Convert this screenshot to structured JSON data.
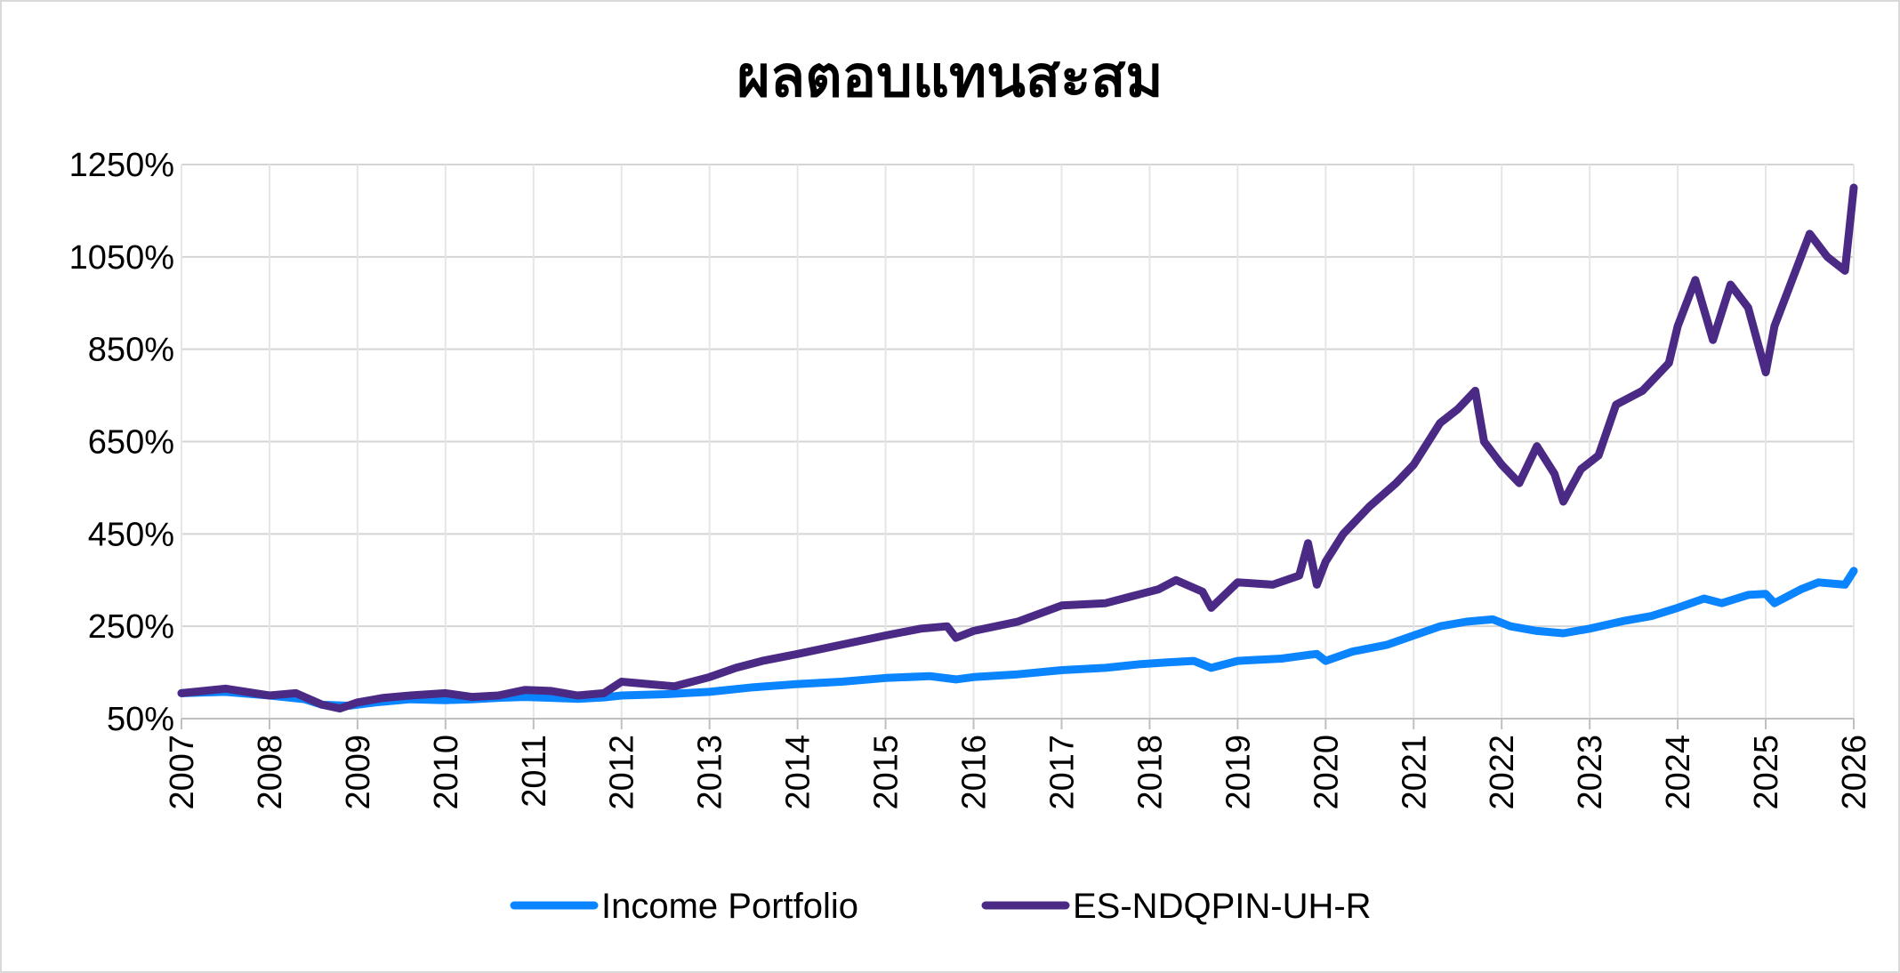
{
  "chart_data": {
    "type": "line",
    "title": "ผลตอบแทนสะสม",
    "xlabel": "",
    "ylabel": "",
    "xlim": [
      2007,
      2026
    ],
    "ylim": [
      50,
      1250
    ],
    "y_ticks": [
      50,
      250,
      450,
      650,
      850,
      1050,
      1250
    ],
    "y_tick_labels": [
      "50%",
      "250%",
      "450%",
      "650%",
      "850%",
      "1050%",
      "1250%"
    ],
    "x_ticks": [
      "2007",
      "2008",
      "2009",
      "2010",
      "2011",
      "2012",
      "2013",
      "2014",
      "2015",
      "2016",
      "2017",
      "2018",
      "2019",
      "2020",
      "2021",
      "2022",
      "2023",
      "2024",
      "2025",
      "2026"
    ],
    "grid": true,
    "legend_position": "bottom",
    "series": [
      {
        "name": "Income Portfolio",
        "color": "#0a84ff",
        "x": [
          2007.0,
          2007.5,
          2008.0,
          2008.4,
          2008.6,
          2008.9,
          2009.2,
          2009.6,
          2010.0,
          2010.3,
          2010.6,
          2010.9,
          2011.2,
          2011.5,
          2011.8,
          2012.0,
          2012.5,
          2013.0,
          2013.5,
          2014.0,
          2014.5,
          2015.0,
          2015.5,
          2015.8,
          2016.0,
          2016.5,
          2017.0,
          2017.5,
          2017.9,
          2018.2,
          2018.5,
          2018.7,
          2019.0,
          2019.5,
          2019.8,
          2019.9,
          2020.0,
          2020.3,
          2020.7,
          2021.0,
          2021.3,
          2021.6,
          2021.9,
          2022.1,
          2022.4,
          2022.7,
          2023.0,
          2023.4,
          2023.7,
          2024.0,
          2024.3,
          2024.5,
          2024.8,
          2025.0,
          2025.1,
          2025.4,
          2025.6,
          2025.9,
          2026.0
        ],
        "values": [
          105,
          108,
          100,
          92,
          80,
          78,
          85,
          92,
          90,
          92,
          95,
          97,
          95,
          93,
          96,
          100,
          103,
          108,
          118,
          125,
          130,
          138,
          142,
          135,
          140,
          146,
          155,
          160,
          168,
          172,
          175,
          160,
          175,
          180,
          188,
          190,
          175,
          195,
          210,
          230,
          250,
          260,
          265,
          250,
          240,
          235,
          245,
          262,
          272,
          290,
          310,
          300,
          318,
          320,
          300,
          330,
          345,
          340,
          370
        ]
      },
      {
        "name": "ES-NDQPIN-UH-R",
        "color": "#4b2a86",
        "x": [
          2007.0,
          2007.5,
          2008.0,
          2008.3,
          2008.6,
          2008.8,
          2009.0,
          2009.3,
          2009.6,
          2010.0,
          2010.3,
          2010.6,
          2010.9,
          2011.2,
          2011.5,
          2011.8,
          2012.0,
          2012.3,
          2012.6,
          2013.0,
          2013.3,
          2013.6,
          2014.0,
          2014.5,
          2015.0,
          2015.4,
          2015.7,
          2015.8,
          2016.0,
          2016.5,
          2017.0,
          2017.5,
          2017.9,
          2018.1,
          2018.3,
          2018.6,
          2018.7,
          2019.0,
          2019.4,
          2019.7,
          2019.8,
          2019.9,
          2020.0,
          2020.2,
          2020.5,
          2020.8,
          2021.0,
          2021.3,
          2021.5,
          2021.7,
          2021.8,
          2022.0,
          2022.2,
          2022.4,
          2022.6,
          2022.7,
          2022.9,
          2023.1,
          2023.3,
          2023.6,
          2023.9,
          2024.0,
          2024.2,
          2024.4,
          2024.6,
          2024.8,
          2025.0,
          2025.1,
          2025.3,
          2025.5,
          2025.7,
          2025.9,
          2026.0
        ],
        "values": [
          105,
          115,
          100,
          105,
          80,
          72,
          85,
          95,
          100,
          105,
          97,
          100,
          112,
          110,
          100,
          105,
          130,
          125,
          120,
          140,
          160,
          175,
          190,
          210,
          230,
          245,
          250,
          225,
          240,
          260,
          295,
          300,
          320,
          330,
          350,
          325,
          290,
          345,
          340,
          360,
          430,
          340,
          390,
          450,
          510,
          560,
          600,
          690,
          720,
          760,
          650,
          600,
          560,
          640,
          580,
          520,
          590,
          620,
          730,
          760,
          820,
          900,
          1000,
          870,
          990,
          940,
          800,
          900,
          1000,
          1100,
          1050,
          1020,
          1200
        ]
      }
    ]
  }
}
